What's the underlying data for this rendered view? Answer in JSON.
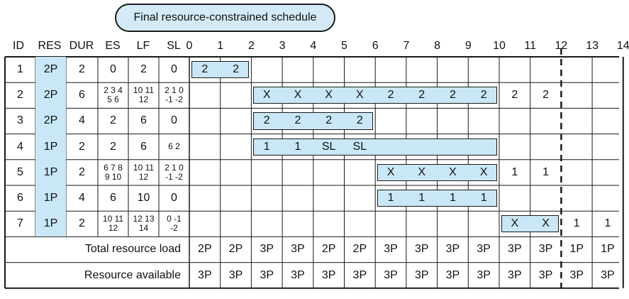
{
  "title": "Final resource-constrained schedule",
  "headers": {
    "id": "ID",
    "res": "RES",
    "dur": "DUR",
    "es": "ES",
    "lf": "LF",
    "sl": "SL"
  },
  "time_ticks": [
    "0",
    "1",
    "2",
    "3",
    "4",
    "5",
    "6",
    "7",
    "8",
    "9",
    "10",
    "11",
    "12",
    "13",
    "14"
  ],
  "rows": [
    {
      "id": "1",
      "res": "2P",
      "dur": "2",
      "es": [
        "0"
      ],
      "lf": [
        "2"
      ],
      "sl": [
        "0"
      ],
      "marks": [
        {
          "t": 0,
          "v": "2"
        },
        {
          "t": 1,
          "v": "2"
        }
      ],
      "bar": [
        0,
        2
      ]
    },
    {
      "id": "2",
      "res": "2P",
      "dur": "6",
      "es": [
        "2 3 4",
        "5  6"
      ],
      "lf": [
        "10 11",
        "12"
      ],
      "sl": [
        "2 1 0",
        "-1 -2"
      ],
      "marks": [
        {
          "t": 2,
          "v": "X"
        },
        {
          "t": 3,
          "v": "X"
        },
        {
          "t": 4,
          "v": "X"
        },
        {
          "t": 5,
          "v": "X"
        },
        {
          "t": 6,
          "v": "2"
        },
        {
          "t": 7,
          "v": "2"
        },
        {
          "t": 8,
          "v": "2"
        },
        {
          "t": 9,
          "v": "2"
        },
        {
          "t": 10,
          "v": "2"
        },
        {
          "t": 11,
          "v": "2"
        }
      ],
      "bar": [
        2,
        10
      ]
    },
    {
      "id": "3",
      "res": "2P",
      "dur": "4",
      "es": [
        "2"
      ],
      "lf": [
        "6"
      ],
      "sl": [
        "0"
      ],
      "marks": [
        {
          "t": 2,
          "v": "2"
        },
        {
          "t": 3,
          "v": "2"
        },
        {
          "t": 4,
          "v": "2"
        },
        {
          "t": 5,
          "v": "2"
        }
      ],
      "bar": [
        2,
        6
      ]
    },
    {
      "id": "4",
      "res": "1P",
      "dur": "2",
      "es": [
        "2"
      ],
      "lf": [
        "6"
      ],
      "sl": [
        "6  2"
      ],
      "marks": [
        {
          "t": 2,
          "v": "1"
        },
        {
          "t": 3,
          "v": "1"
        },
        {
          "t": 4,
          "v": "SL"
        },
        {
          "t": 5,
          "v": "SL"
        }
      ],
      "bar": [
        2,
        10
      ]
    },
    {
      "id": "5",
      "res": "1P",
      "dur": "2",
      "es": [
        "6 7 8",
        "9 10"
      ],
      "lf": [
        "10 11",
        "12"
      ],
      "sl": [
        "2 1 0",
        "-1 -2"
      ],
      "marks": [
        {
          "t": 6,
          "v": "X"
        },
        {
          "t": 7,
          "v": "X"
        },
        {
          "t": 8,
          "v": "X"
        },
        {
          "t": 9,
          "v": "X"
        },
        {
          "t": 10,
          "v": "1"
        },
        {
          "t": 11,
          "v": "1"
        }
      ],
      "bar": [
        6,
        10
      ]
    },
    {
      "id": "6",
      "res": "1P",
      "dur": "4",
      "es": [
        "6"
      ],
      "lf": [
        "10"
      ],
      "sl": [
        "0"
      ],
      "marks": [
        {
          "t": 6,
          "v": "1"
        },
        {
          "t": 7,
          "v": "1"
        },
        {
          "t": 8,
          "v": "1"
        },
        {
          "t": 9,
          "v": "1"
        }
      ],
      "bar": [
        6,
        10
      ]
    },
    {
      "id": "7",
      "res": "1P",
      "dur": "2",
      "es": [
        "10 11",
        "12"
      ],
      "lf": [
        "12 13",
        "14"
      ],
      "sl": [
        "0 -1",
        "-2"
      ],
      "marks": [
        {
          "t": 10,
          "v": "X"
        },
        {
          "t": 11,
          "v": "X"
        },
        {
          "t": 12,
          "v": "1"
        },
        {
          "t": 13,
          "v": "1"
        }
      ],
      "bar": [
        10,
        12
      ]
    }
  ],
  "summary": [
    {
      "label": "Total resource load",
      "values": [
        "2P",
        "2P",
        "3P",
        "3P",
        "2P",
        "2P",
        "3P",
        "3P",
        "3P",
        "3P",
        "3P",
        "3P",
        "1P",
        "1P"
      ]
    },
    {
      "label": "Resource available",
      "values": [
        "3P",
        "3P",
        "3P",
        "3P",
        "3P",
        "3P",
        "3P",
        "3P",
        "3P",
        "3P",
        "3P",
        "3P",
        "3P",
        "3P"
      ]
    }
  ],
  "dashed_time": 12,
  "colors": {
    "bar_fill": "#c9e7f6",
    "line": "#1a1a1a",
    "title_fill": "#d4ebf7"
  }
}
